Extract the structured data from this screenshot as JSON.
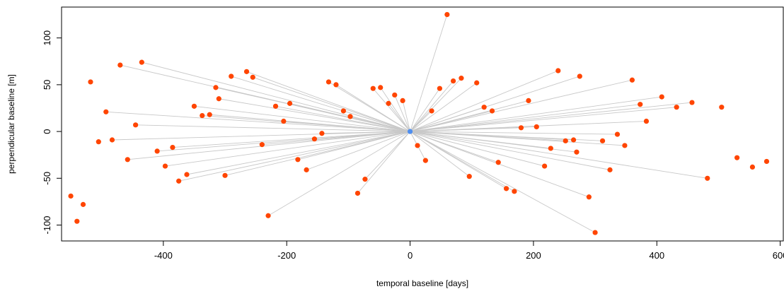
{
  "chart_data": {
    "type": "scatter",
    "title": "",
    "xlabel": "temporal baseline [days]",
    "ylabel": "perpendicular baseline [m]",
    "xlim": [
      -565,
      605
    ],
    "ylim": [
      -117,
      133
    ],
    "xticks": [
      -400,
      -200,
      0,
      200,
      400,
      600
    ],
    "yticks": [
      -100,
      -50,
      0,
      50,
      100
    ],
    "grid": false,
    "legend": "none",
    "master": {
      "x": 0,
      "y": 0
    },
    "colors": {
      "point": "#ff4500",
      "master": "#4f8ff0",
      "line": "#c8c8c8",
      "axis": "#000000"
    },
    "points": [
      {
        "x": 60,
        "y": 125,
        "connected": true
      },
      {
        "x": -435,
        "y": 74,
        "connected": true
      },
      {
        "x": -470,
        "y": 71,
        "connected": true
      },
      {
        "x": 240,
        "y": 65,
        "connected": true
      },
      {
        "x": -265,
        "y": 64,
        "connected": true
      },
      {
        "x": -290,
        "y": 59,
        "connected": true
      },
      {
        "x": -255,
        "y": 58,
        "connected": true
      },
      {
        "x": 275,
        "y": 59,
        "connected": true
      },
      {
        "x": 83,
        "y": 57,
        "connected": true
      },
      {
        "x": 360,
        "y": 55,
        "connected": true
      },
      {
        "x": 70,
        "y": 54,
        "connected": true
      },
      {
        "x": -132,
        "y": 53,
        "connected": true
      },
      {
        "x": 108,
        "y": 52,
        "connected": true
      },
      {
        "x": -518,
        "y": 53,
        "connected": false
      },
      {
        "x": -120,
        "y": 50,
        "connected": true
      },
      {
        "x": -315,
        "y": 47,
        "connected": true
      },
      {
        "x": -60,
        "y": 46,
        "connected": true
      },
      {
        "x": -48,
        "y": 47,
        "connected": true
      },
      {
        "x": 48,
        "y": 46,
        "connected": true
      },
      {
        "x": -25,
        "y": 39,
        "connected": true
      },
      {
        "x": 408,
        "y": 37,
        "connected": true
      },
      {
        "x": -310,
        "y": 35,
        "connected": true
      },
      {
        "x": -12,
        "y": 33,
        "connected": true
      },
      {
        "x": 192,
        "y": 33,
        "connected": true
      },
      {
        "x": 457,
        "y": 31,
        "connected": true
      },
      {
        "x": -35,
        "y": 30,
        "connected": true
      },
      {
        "x": -195,
        "y": 30,
        "connected": true
      },
      {
        "x": 373,
        "y": 29,
        "connected": true
      },
      {
        "x": -218,
        "y": 27,
        "connected": true
      },
      {
        "x": -350,
        "y": 27,
        "connected": true
      },
      {
        "x": 432,
        "y": 26,
        "connected": true
      },
      {
        "x": 120,
        "y": 26,
        "connected": true
      },
      {
        "x": 505,
        "y": 26,
        "connected": false
      },
      {
        "x": 35,
        "y": 22,
        "connected": true
      },
      {
        "x": -108,
        "y": 22,
        "connected": true
      },
      {
        "x": 133,
        "y": 22,
        "connected": true
      },
      {
        "x": -493,
        "y": 21,
        "connected": true
      },
      {
        "x": -325,
        "y": 18,
        "connected": true
      },
      {
        "x": -337,
        "y": 17,
        "connected": true
      },
      {
        "x": -97,
        "y": 16,
        "connected": true
      },
      {
        "x": -205,
        "y": 11,
        "connected": true
      },
      {
        "x": 383,
        "y": 11,
        "connected": true
      },
      {
        "x": -445,
        "y": 7,
        "connected": true
      },
      {
        "x": 205,
        "y": 5,
        "connected": true
      },
      {
        "x": 180,
        "y": 4,
        "connected": true
      },
      {
        "x": -143,
        "y": -2,
        "connected": true
      },
      {
        "x": 336,
        "y": -3,
        "connected": true
      },
      {
        "x": -155,
        "y": -8,
        "connected": true
      },
      {
        "x": -483,
        "y": -9,
        "connected": true
      },
      {
        "x": 265,
        "y": -9,
        "connected": true
      },
      {
        "x": 252,
        "y": -10,
        "connected": true
      },
      {
        "x": -505,
        "y": -11,
        "connected": false
      },
      {
        "x": 312,
        "y": -10,
        "connected": true
      },
      {
        "x": -240,
        "y": -14,
        "connected": true
      },
      {
        "x": 12,
        "y": -15,
        "connected": true
      },
      {
        "x": 348,
        "y": -15,
        "connected": true
      },
      {
        "x": -385,
        "y": -17,
        "connected": true
      },
      {
        "x": 228,
        "y": -18,
        "connected": true
      },
      {
        "x": -410,
        "y": -21,
        "connected": true
      },
      {
        "x": 270,
        "y": -22,
        "connected": true
      },
      {
        "x": 530,
        "y": -28,
        "connected": false
      },
      {
        "x": -182,
        "y": -30,
        "connected": true
      },
      {
        "x": -458,
        "y": -30,
        "connected": true
      },
      {
        "x": 25,
        "y": -31,
        "connected": true
      },
      {
        "x": 578,
        "y": -32,
        "connected": false
      },
      {
        "x": 143,
        "y": -33,
        "connected": true
      },
      {
        "x": -397,
        "y": -37,
        "connected": true
      },
      {
        "x": 218,
        "y": -37,
        "connected": true
      },
      {
        "x": 555,
        "y": -38,
        "connected": false
      },
      {
        "x": -168,
        "y": -41,
        "connected": true
      },
      {
        "x": 324,
        "y": -41,
        "connected": true
      },
      {
        "x": -362,
        "y": -46,
        "connected": true
      },
      {
        "x": -300,
        "y": -47,
        "connected": true
      },
      {
        "x": 96,
        "y": -48,
        "connected": true
      },
      {
        "x": 482,
        "y": -50,
        "connected": true
      },
      {
        "x": -73,
        "y": -51,
        "connected": true
      },
      {
        "x": -375,
        "y": -53,
        "connected": true
      },
      {
        "x": 156,
        "y": -61,
        "connected": true
      },
      {
        "x": 169,
        "y": -64,
        "connected": true
      },
      {
        "x": -85,
        "y": -66,
        "connected": true
      },
      {
        "x": -550,
        "y": -69,
        "connected": false
      },
      {
        "x": 290,
        "y": -70,
        "connected": true
      },
      {
        "x": -530,
        "y": -78,
        "connected": false
      },
      {
        "x": -230,
        "y": -90,
        "connected": true
      },
      {
        "x": -540,
        "y": -96,
        "connected": false
      },
      {
        "x": 300,
        "y": -108,
        "connected": true
      }
    ]
  }
}
